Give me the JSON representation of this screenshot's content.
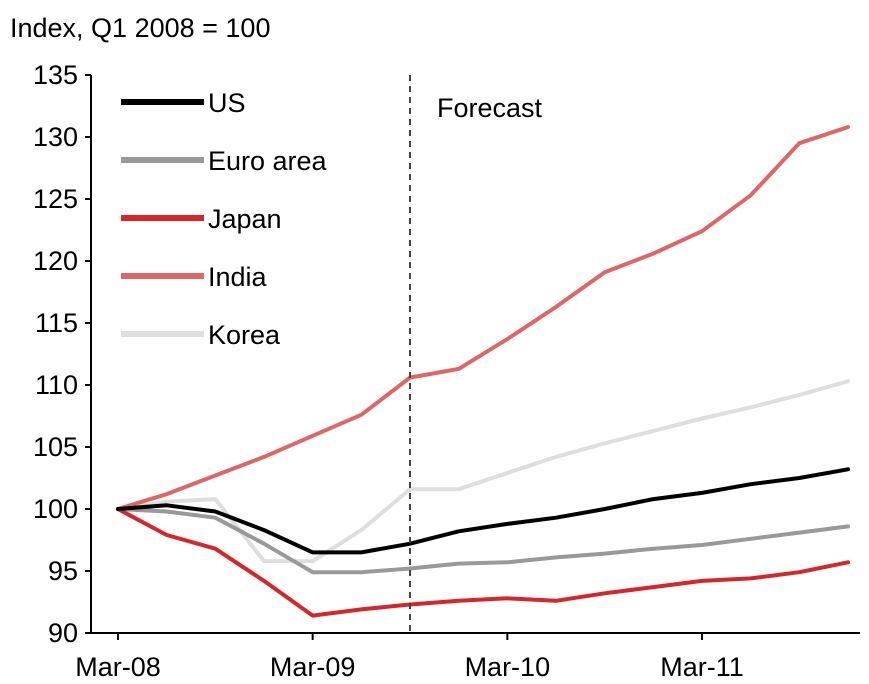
{
  "chart_data": {
    "type": "line",
    "unit_label": "Index, Q1 2008 = 100",
    "annotation": "Forecast",
    "forecast_start_quarter": 6,
    "x_tick_labels": [
      "Mar-08",
      "Mar-09",
      "Mar-10",
      "Mar-11"
    ],
    "x_tick_quarters": [
      0,
      4,
      8,
      12
    ],
    "ylim": [
      90,
      135
    ],
    "y_ticks": [
      90,
      95,
      100,
      105,
      110,
      115,
      120,
      125,
      130,
      135
    ],
    "series": [
      {
        "name": "US",
        "color": "#000000",
        "values": [
          100,
          100.3,
          99.8,
          98.3,
          96.5,
          96.5,
          97.2,
          98.2,
          98.8,
          99.3,
          100,
          100.8,
          101.3,
          102,
          102.5,
          103.2
        ]
      },
      {
        "name": "Euro area",
        "color": "#999999",
        "values": [
          100,
          99.8,
          99.3,
          97.2,
          94.9,
          94.9,
          95.2,
          95.6,
          95.7,
          96.1,
          96.4,
          96.8,
          97.1,
          97.6,
          98.1,
          98.6
        ]
      },
      {
        "name": "Japan",
        "color": "#d7262b",
        "values": [
          100,
          97.9,
          96.8,
          94.2,
          91.4,
          91.9,
          92.3,
          92.6,
          92.8,
          92.6,
          93.2,
          93.7,
          94.2,
          94.4,
          94.9,
          95.7
        ]
      },
      {
        "name": "India",
        "color": "#e06666",
        "values": [
          100,
          101.2,
          102.7,
          104.2,
          105.9,
          107.6,
          110.6,
          111.3,
          113.7,
          116.3,
          119.1,
          120.6,
          122.4,
          125.3,
          129.5,
          130.8
        ]
      },
      {
        "name": "Korea",
        "color": "#dedede",
        "values": [
          100,
          100.6,
          100.8,
          95.8,
          95.8,
          98.3,
          101.6,
          101.6,
          102.9,
          104.2,
          105.3,
          106.3,
          107.3,
          108.2,
          109.2,
          110.3
        ]
      }
    ]
  }
}
